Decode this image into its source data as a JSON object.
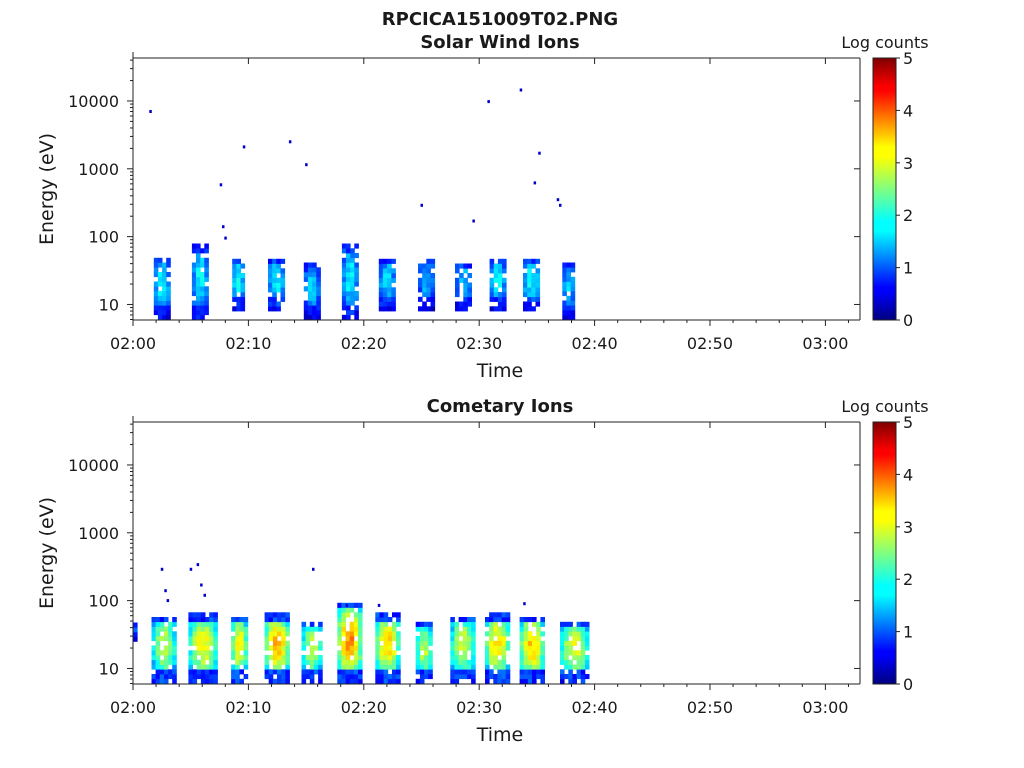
{
  "figure_title": "RPCICA151009T02.PNG",
  "colorbar": {
    "label": "Log counts",
    "ticks": [
      "0",
      "1",
      "2",
      "3",
      "4",
      "5"
    ],
    "range": [
      0,
      5
    ],
    "colormap": "jet"
  },
  "chart_data": [
    {
      "type": "heatmap",
      "title": "Solar Wind Ions",
      "xlabel": "Time",
      "ylabel": "Energy (eV)",
      "yscale": "log",
      "xlim": [
        "02:00",
        "03:03"
      ],
      "ylim": [
        5.9,
        43000
      ],
      "xticks": [
        "02:00",
        "02:10",
        "02:20",
        "02:30",
        "02:40",
        "02:50",
        "03:00"
      ],
      "yticks": [
        "10",
        "100",
        "1000",
        "10000"
      ],
      "bursts_start_min": [
        1.8,
        5.1,
        8.6,
        11.7,
        14.8,
        18.1,
        21.3,
        24.7,
        27.9,
        30.9,
        33.8,
        37.2
      ],
      "bursts": [
        {
          "t": 1.8,
          "w": 1.4,
          "e_low": 6,
          "e_high": 45,
          "peak_log_counts": 1.8
        },
        {
          "t": 5.1,
          "w": 1.4,
          "e_low": 6,
          "e_high": 70,
          "peak_log_counts": 1.8
        },
        {
          "t": 8.6,
          "w": 1.2,
          "e_low": 8,
          "e_high": 45,
          "peak_log_counts": 1.9
        },
        {
          "t": 11.7,
          "w": 1.4,
          "e_low": 8,
          "e_high": 45,
          "peak_log_counts": 1.8
        },
        {
          "t": 14.8,
          "w": 1.6,
          "e_low": 6,
          "e_high": 38,
          "peak_log_counts": 1.6
        },
        {
          "t": 18.1,
          "w": 1.3,
          "e_low": 6,
          "e_high": 70,
          "peak_log_counts": 1.8
        },
        {
          "t": 21.3,
          "w": 1.4,
          "e_low": 8,
          "e_high": 45,
          "peak_log_counts": 1.7
        },
        {
          "t": 24.7,
          "w": 1.4,
          "e_low": 8,
          "e_high": 45,
          "peak_log_counts": 1.5
        },
        {
          "t": 27.9,
          "w": 1.3,
          "e_low": 8,
          "e_high": 38,
          "peak_log_counts": 1.6
        },
        {
          "t": 30.9,
          "w": 1.4,
          "e_low": 8,
          "e_high": 45,
          "peak_log_counts": 1.8
        },
        {
          "t": 33.8,
          "w": 1.6,
          "e_low": 8,
          "e_high": 45,
          "peak_log_counts": 1.9
        },
        {
          "t": 37.2,
          "w": 1.0,
          "e_low": 6,
          "e_high": 38,
          "peak_log_counts": 1.6
        }
      ],
      "sparse_points": [
        {
          "t": 1.5,
          "e": 7000
        },
        {
          "t": 7.6,
          "e": 580
        },
        {
          "t": 7.8,
          "e": 140
        },
        {
          "t": 8.0,
          "e": 95
        },
        {
          "t": 9.6,
          "e": 2100
        },
        {
          "t": 13.6,
          "e": 2500
        },
        {
          "t": 15.0,
          "e": 1150
        },
        {
          "t": 25.0,
          "e": 290
        },
        {
          "t": 29.5,
          "e": 170
        },
        {
          "t": 30.8,
          "e": 9800
        },
        {
          "t": 33.6,
          "e": 14500
        },
        {
          "t": 34.8,
          "e": 620
        },
        {
          "t": 35.2,
          "e": 1700
        },
        {
          "t": 36.8,
          "e": 350
        },
        {
          "t": 37.0,
          "e": 290
        }
      ]
    },
    {
      "type": "heatmap",
      "title": "Cometary Ions",
      "xlabel": "Time",
      "ylabel": "Energy (eV)",
      "yscale": "log",
      "xlim": [
        "02:00",
        "03:03"
      ],
      "ylim": [
        5.9,
        43000
      ],
      "xticks": [
        "02:00",
        "02:10",
        "02:20",
        "02:30",
        "02:40",
        "02:50",
        "03:00"
      ],
      "yticks": [
        "10",
        "100",
        "1000",
        "10000"
      ],
      "bursts": [
        {
          "t": 0.0,
          "w": 0.5,
          "e_low": 25,
          "e_high": 45,
          "peak_log_counts": 1.6
        },
        {
          "t": 1.6,
          "w": 2.2,
          "e_low": 6,
          "e_high": 55,
          "peak_log_counts": 2.8
        },
        {
          "t": 4.8,
          "w": 2.4,
          "e_low": 6,
          "e_high": 60,
          "peak_log_counts": 3.1
        },
        {
          "t": 8.5,
          "w": 1.5,
          "e_low": 6,
          "e_high": 55,
          "peak_log_counts": 3.1
        },
        {
          "t": 11.4,
          "w": 2.0,
          "e_low": 6,
          "e_high": 60,
          "peak_log_counts": 3.5
        },
        {
          "t": 14.6,
          "w": 1.9,
          "e_low": 6,
          "e_high": 45,
          "peak_log_counts": 2.8
        },
        {
          "t": 17.7,
          "w": 2.2,
          "e_low": 6,
          "e_high": 85,
          "peak_log_counts": 3.7
        },
        {
          "t": 21.0,
          "w": 2.2,
          "e_low": 6,
          "e_high": 60,
          "peak_log_counts": 3.3
        },
        {
          "t": 24.5,
          "w": 1.6,
          "e_low": 6,
          "e_high": 45,
          "peak_log_counts": 2.8
        },
        {
          "t": 27.5,
          "w": 2.1,
          "e_low": 6,
          "e_high": 55,
          "peak_log_counts": 2.9
        },
        {
          "t": 30.5,
          "w": 2.1,
          "e_low": 6,
          "e_high": 60,
          "peak_log_counts": 3.3
        },
        {
          "t": 33.5,
          "w": 2.2,
          "e_low": 6,
          "e_high": 55,
          "peak_log_counts": 3.4
        },
        {
          "t": 37.0,
          "w": 2.5,
          "e_low": 6,
          "e_high": 45,
          "peak_log_counts": 3.0
        }
      ],
      "sparse_points": [
        {
          "t": 2.5,
          "e": 290
        },
        {
          "t": 2.8,
          "e": 140
        },
        {
          "t": 3.0,
          "e": 100
        },
        {
          "t": 5.0,
          "e": 290
        },
        {
          "t": 5.6,
          "e": 340
        },
        {
          "t": 5.9,
          "e": 170
        },
        {
          "t": 6.2,
          "e": 120
        },
        {
          "t": 15.6,
          "e": 290
        },
        {
          "t": 18.5,
          "e": 85
        },
        {
          "t": 21.3,
          "e": 85
        },
        {
          "t": 33.9,
          "e": 90
        }
      ]
    }
  ]
}
